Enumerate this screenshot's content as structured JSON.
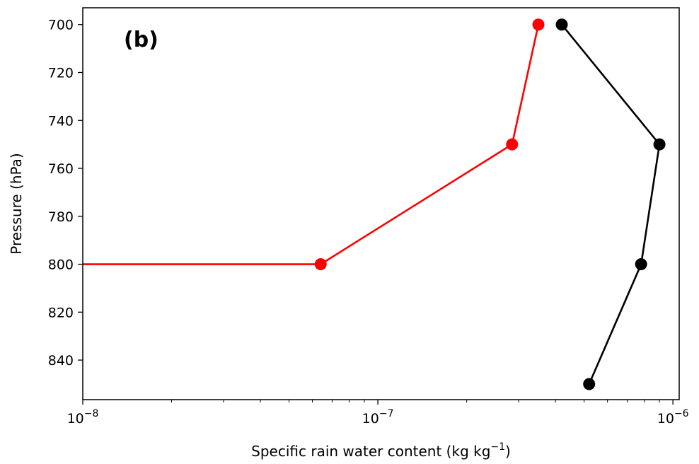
{
  "chart_data": {
    "type": "line",
    "panel_label": "(b)",
    "xlabel": {
      "main": "Specific rain water content (kg kg",
      "sup": "−1",
      "end": ")"
    },
    "ylabel": "Pressure (hPa)",
    "xscale": "log",
    "xlim": [
      1e-08,
      1.05e-06
    ],
    "ylim": [
      856.5,
      693
    ],
    "y_inverted": true,
    "grid": false,
    "xticks": [
      {
        "value": 1e-08,
        "base": "10",
        "exp": "−8"
      },
      {
        "value": 1e-07,
        "base": "10",
        "exp": "−7"
      },
      {
        "value": 1e-06,
        "base": "10",
        "exp": "−6"
      }
    ],
    "yticks": [
      700,
      720,
      740,
      760,
      780,
      800,
      820,
      840
    ],
    "series": [
      {
        "color": "#ff0000",
        "points": [
          {
            "x": 3.5e-07,
            "y": 700
          },
          {
            "x": 2.85e-07,
            "y": 750
          },
          {
            "x": 6.4e-08,
            "y": 800
          },
          {
            "x": 1e-08,
            "y": 800
          }
        ],
        "markers": [
          true,
          true,
          true,
          false
        ]
      },
      {
        "color": "#000000",
        "points": [
          {
            "x": 4.2e-07,
            "y": 700
          },
          {
            "x": 9e-07,
            "y": 750
          },
          {
            "x": 7.8e-07,
            "y": 800
          },
          {
            "x": 5.2e-07,
            "y": 850
          }
        ],
        "markers": [
          true,
          true,
          true,
          true
        ]
      }
    ]
  }
}
